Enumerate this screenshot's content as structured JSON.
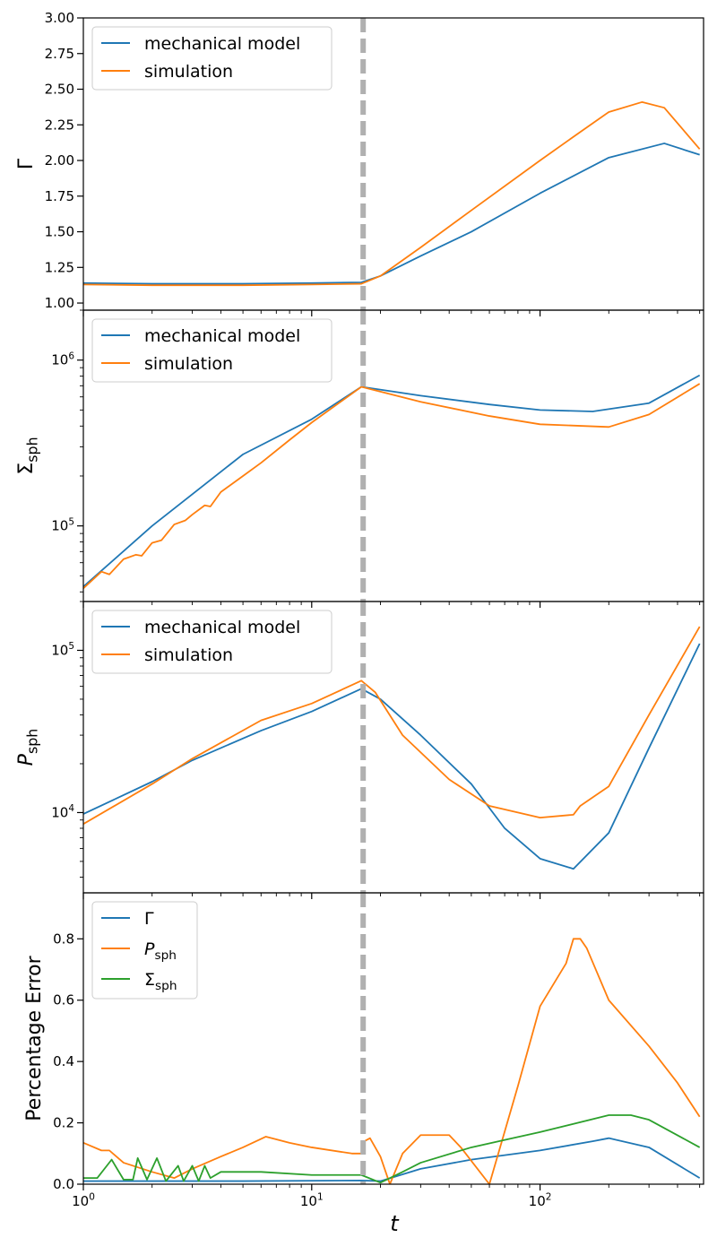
{
  "figure": {
    "x_label": "t"
  },
  "chart_data": [
    {
      "id": "gamma",
      "type": "line",
      "ylabel": "Γ",
      "yscale": "linear",
      "ylim": [
        0.95,
        3.0
      ],
      "yticks": [
        1.0,
        1.25,
        1.5,
        1.75,
        2.0,
        2.25,
        2.5,
        2.75,
        3.0
      ],
      "ytick_labels": [
        "1.00",
        "1.25",
        "1.50",
        "1.75",
        "2.00",
        "2.25",
        "2.50",
        "2.75",
        "3.00"
      ],
      "show_x_ticklabels": false,
      "legend": {
        "location": "top-left",
        "entries": [
          "mechanical model",
          "simulation"
        ]
      },
      "series": [
        {
          "name": "mechanical model",
          "color": "#1f77b4",
          "x": [
            1,
            2,
            5,
            10,
            16.5,
            20,
            30,
            50,
            100,
            200,
            350,
            500
          ],
          "y": [
            1.14,
            1.135,
            1.135,
            1.14,
            1.145,
            1.19,
            1.33,
            1.5,
            1.77,
            2.02,
            2.12,
            2.04
          ]
        },
        {
          "name": "simulation",
          "color": "#ff7f0e",
          "x": [
            1,
            2,
            5,
            10,
            16.5,
            20,
            30,
            50,
            100,
            150,
            200,
            280,
            350,
            500
          ],
          "y": [
            1.13,
            1.125,
            1.125,
            1.13,
            1.135,
            1.19,
            1.39,
            1.65,
            2.0,
            2.2,
            2.34,
            2.41,
            2.37,
            2.08
          ]
        }
      ]
    },
    {
      "id": "sigma",
      "type": "line",
      "ylabel": "Σsph",
      "yscale": "log",
      "ylim": [
        35000,
        2000000
      ],
      "yticks": [
        100000,
        1000000
      ],
      "ytick_labels": [
        "10^5",
        "10^6"
      ],
      "show_x_ticklabels": false,
      "legend": {
        "location": "top-left",
        "entries": [
          "mechanical model",
          "simulation"
        ]
      },
      "series": [
        {
          "name": "mechanical model",
          "color": "#1f77b4",
          "x": [
            1,
            2,
            5,
            10,
            16.5,
            30,
            60,
            100,
            170,
            300,
            500
          ],
          "y": [
            43000,
            100000,
            270000,
            440000,
            690000,
            610000,
            540000,
            500000,
            490000,
            550000,
            810000
          ]
        },
        {
          "name": "simulation",
          "color": "#ff7f0e",
          "x": [
            1,
            1.2,
            1.3,
            1.5,
            1.7,
            1.8,
            2.0,
            2.2,
            2.5,
            2.8,
            3.0,
            3.4,
            3.6,
            4.0,
            5.0,
            6.0,
            8.0,
            10,
            16.5,
            30,
            60,
            100,
            200,
            300,
            500
          ],
          "y": [
            42000,
            53000,
            51000,
            63000,
            67000,
            66000,
            79000,
            82000,
            102000,
            108000,
            117000,
            133000,
            131000,
            160000,
            200000,
            240000,
            330000,
            420000,
            690000,
            560000,
            460000,
            410000,
            395000,
            470000,
            720000
          ]
        }
      ]
    },
    {
      "id": "pressure",
      "type": "line",
      "ylabel": "Psph",
      "yscale": "log",
      "ylim": [
        3200,
        200000
      ],
      "yticks": [
        10000,
        100000
      ],
      "ytick_labels": [
        "10^4",
        "10^5"
      ],
      "show_x_ticklabels": false,
      "legend": {
        "location": "top-left",
        "entries": [
          "mechanical model",
          "simulation"
        ]
      },
      "series": [
        {
          "name": "mechanical model",
          "color": "#1f77b4",
          "x": [
            1,
            2,
            3,
            6,
            10,
            16.5,
            20,
            30,
            50,
            70,
            100,
            140,
            200,
            300,
            500
          ],
          "y": [
            9800,
            15500,
            21000,
            32000,
            42000,
            58000,
            50000,
            30000,
            15000,
            8000,
            5200,
            4500,
            7500,
            25000,
            110000
          ]
        },
        {
          "name": "simulation",
          "color": "#ff7f0e",
          "x": [
            1,
            2,
            3,
            6,
            10,
            16.5,
            19,
            25,
            40,
            60,
            100,
            140,
            150,
            200,
            300,
            500
          ],
          "y": [
            8500,
            15000,
            21500,
            37000,
            47000,
            65000,
            55000,
            30000,
            16000,
            11000,
            9300,
            9700,
            11000,
            14500,
            40000,
            140000
          ]
        }
      ]
    },
    {
      "id": "error",
      "type": "line",
      "ylabel": "Percentage Error",
      "xlabel": "t",
      "yscale": "linear",
      "ylim": [
        0,
        0.95
      ],
      "yticks": [
        0.0,
        0.2,
        0.4,
        0.6,
        0.8
      ],
      "ytick_labels": [
        "0.0",
        "0.2",
        "0.4",
        "0.6",
        "0.8"
      ],
      "xticks": [
        1,
        10,
        100
      ],
      "xtick_labels": [
        "10^0",
        "10^1",
        "10^2"
      ],
      "show_x_ticklabels": true,
      "legend": {
        "location": "top-left",
        "entries": [
          "Γ",
          "Psph",
          "Σsph"
        ]
      },
      "series": [
        {
          "name": "Γ",
          "color": "#1f77b4",
          "x": [
            1,
            5,
            16.5,
            20,
            30,
            50,
            100,
            170,
            200,
            300,
            500
          ],
          "y": [
            0.01,
            0.01,
            0.012,
            0.01,
            0.05,
            0.08,
            0.11,
            0.14,
            0.15,
            0.12,
            0.02
          ]
        },
        {
          "name": "Psph",
          "color": "#ff7f0e",
          "x": [
            1,
            1.2,
            1.3,
            1.5,
            2.0,
            2.5,
            3.0,
            4.0,
            5.0,
            6.3,
            8.0,
            10,
            15,
            16.5,
            17,
            18,
            20,
            22,
            25,
            30,
            40,
            45,
            60,
            80,
            100,
            130,
            140,
            150,
            160,
            200,
            300,
            400,
            500
          ],
          "y": [
            0.135,
            0.11,
            0.11,
            0.07,
            0.04,
            0.02,
            0.05,
            0.09,
            0.12,
            0.155,
            0.135,
            0.12,
            0.1,
            0.1,
            0.14,
            0.15,
            0.09,
            0.0,
            0.1,
            0.16,
            0.16,
            0.12,
            0.0,
            0.32,
            0.58,
            0.72,
            0.8,
            0.8,
            0.77,
            0.6,
            0.45,
            0.33,
            0.22
          ]
        },
        {
          "name": "Σsph",
          "color": "#2ca02c",
          "x": [
            1,
            1.15,
            1.33,
            1.5,
            1.65,
            1.73,
            1.9,
            2.1,
            2.3,
            2.6,
            2.75,
            3.0,
            3.2,
            3.4,
            3.6,
            4.0,
            6.0,
            10,
            16.5,
            20,
            25,
            30,
            50,
            100,
            200,
            250,
            300,
            500
          ],
          "y": [
            0.02,
            0.02,
            0.08,
            0.015,
            0.015,
            0.085,
            0.015,
            0.085,
            0.01,
            0.06,
            0.01,
            0.06,
            0.01,
            0.06,
            0.02,
            0.04,
            0.04,
            0.03,
            0.03,
            0.005,
            0.04,
            0.07,
            0.12,
            0.17,
            0.225,
            0.225,
            0.21,
            0.12
          ]
        }
      ]
    }
  ]
}
